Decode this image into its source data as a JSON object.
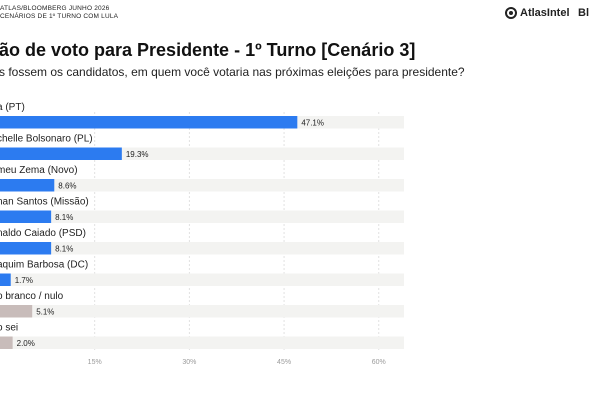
{
  "header": {
    "line1": "ATLAS/BLOOMBERG JUNHO 2026",
    "line2": "CENÁRIOS DE 1º TURNO COM LULA",
    "brand": "AtlasIntel",
    "brand_right": "Bl"
  },
  "colors": {
    "primary": "#2c7bf0",
    "other": "#c8bcba",
    "track": "#f3f3f1",
    "grid": "#e1e1e1"
  },
  "chart_data": {
    "type": "bar",
    "orientation": "horizontal",
    "title": "ão de voto para Presidente - 1º Turno [Cenário 3]",
    "subtitle": "s fossem os candidatos, em quem você votaria nas próximas eleições para presidente?",
    "categories": [
      "a (PT)",
      "chelle Bolsonaro (PL)",
      "meu Zema (Novo)",
      "nan Santos (Missão)",
      "naldo Caiado (PSD)",
      "aquim Barbosa (DC)",
      "o branco / nulo",
      "o sei"
    ],
    "values": [
      47.1,
      19.3,
      8.6,
      8.1,
      8.1,
      1.7,
      5.1,
      2.0
    ],
    "value_labels": [
      "47.1%",
      "19.3%",
      "8.6%",
      "8.1%",
      "8.1%",
      "1.7%",
      "5.1%",
      "2.0%"
    ],
    "bar_colors": [
      "primary",
      "primary",
      "primary",
      "primary",
      "primary",
      "primary",
      "other",
      "other"
    ],
    "xlim": [
      0,
      64
    ],
    "ticks": [
      15,
      30,
      45,
      60
    ],
    "tick_labels": [
      "15%",
      "30%",
      "45%",
      "60%"
    ],
    "grid": true
  }
}
